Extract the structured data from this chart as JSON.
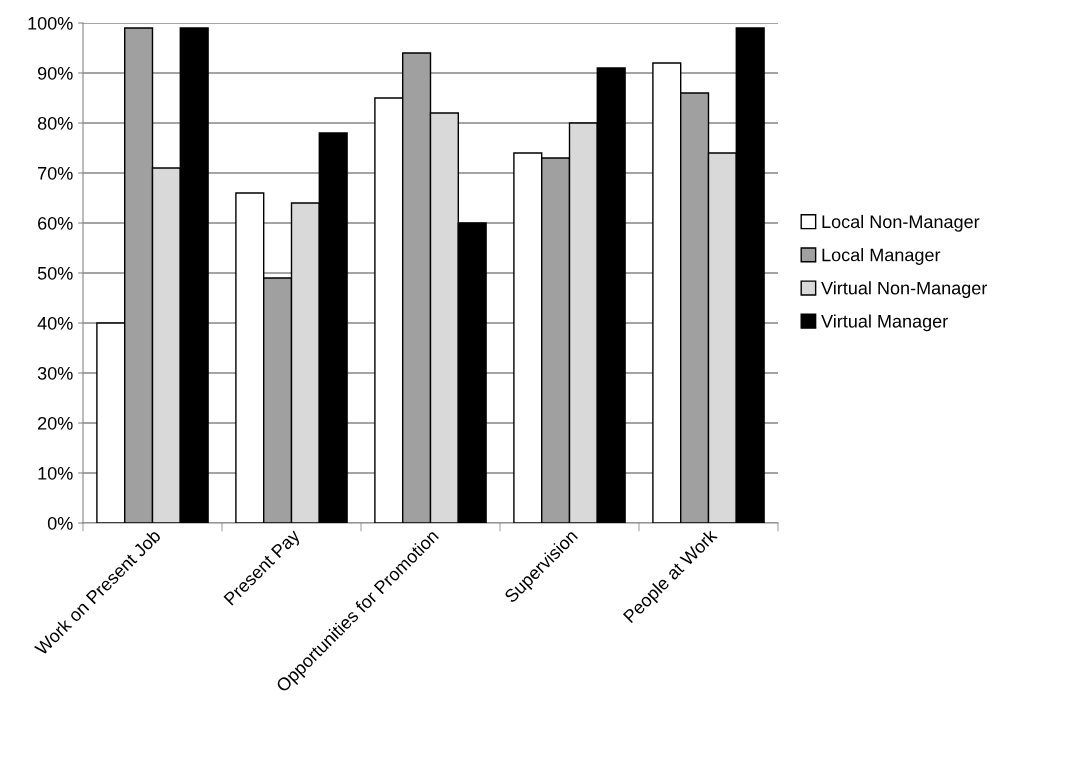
{
  "chart_data": {
    "type": "bar",
    "categories": [
      "Work on Present Job",
      "Present Pay",
      "Opportunities for Promotion",
      "Supervision",
      "People at Work"
    ],
    "series": [
      {
        "name": "Local Non-Manager",
        "color": "#ffffff",
        "values": [
          40,
          66,
          85,
          74,
          92
        ]
      },
      {
        "name": "Local Manager",
        "color": "#a0a0a0",
        "values": [
          99,
          49,
          94,
          73,
          86
        ]
      },
      {
        "name": "Virtual Non-Manager",
        "color": "#d9d9d9",
        "values": [
          71,
          64,
          82,
          80,
          74
        ]
      },
      {
        "name": "Virtual Manager",
        "color": "#000000",
        "values": [
          99,
          78,
          60,
          91,
          99
        ]
      }
    ],
    "ylim": [
      0,
      100
    ],
    "yticks": [
      {
        "value": 0,
        "label": "0%"
      },
      {
        "value": 10,
        "label": "10%"
      },
      {
        "value": 20,
        "label": "20%"
      },
      {
        "value": 30,
        "label": "30%"
      },
      {
        "value": 40,
        "label": "40%"
      },
      {
        "value": 50,
        "label": "50%"
      },
      {
        "value": 60,
        "label": "60%"
      },
      {
        "value": 70,
        "label": "70%"
      },
      {
        "value": 80,
        "label": "80%"
      },
      {
        "value": 90,
        "label": "90%"
      },
      {
        "value": 100,
        "label": "100%"
      }
    ],
    "grid": "y",
    "legend": "right"
  }
}
